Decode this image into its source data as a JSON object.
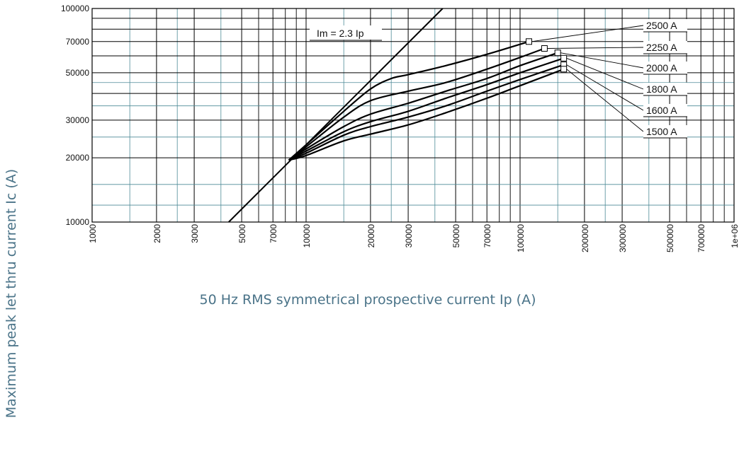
{
  "chart_data": {
    "type": "line",
    "scale": "log-log",
    "xlabel": "50 Hz RMS symmetrical prospective current Ip (A)",
    "ylabel": "Maximum peak let thru current Ic (A)",
    "xlim": [
      1000,
      1000000
    ],
    "ylim": [
      10000,
      100000
    ],
    "x_ticks": [
      {
        "value": 1000,
        "label": "1000"
      },
      {
        "value": 2000,
        "label": "2000"
      },
      {
        "value": 3000,
        "label": "3000"
      },
      {
        "value": 5000,
        "label": "5000"
      },
      {
        "value": 7000,
        "label": "7000"
      },
      {
        "value": 10000,
        "label": "10000"
      },
      {
        "value": 20000,
        "label": "20000"
      },
      {
        "value": 30000,
        "label": "30000"
      },
      {
        "value": 50000,
        "label": "50000"
      },
      {
        "value": 70000,
        "label": "70000"
      },
      {
        "value": 100000,
        "label": "100000"
      },
      {
        "value": 200000,
        "label": "200000"
      },
      {
        "value": 300000,
        "label": "300000"
      },
      {
        "value": 500000,
        "label": "500000"
      },
      {
        "value": 700000,
        "label": "700000"
      },
      {
        "value": 1000000,
        "label": "1e+06"
      }
    ],
    "y_ticks": [
      {
        "value": 10000,
        "label": "10000"
      },
      {
        "value": 20000,
        "label": "20000"
      },
      {
        "value": 30000,
        "label": "30000"
      },
      {
        "value": 50000,
        "label": "50000"
      },
      {
        "value": 70000,
        "label": "70000"
      },
      {
        "value": 100000,
        "label": "100000"
      }
    ],
    "reference_line": {
      "label": "Im = 2.3 Ip",
      "factor": 2.3
    },
    "series": [
      {
        "name": "2500 A",
        "x": [
          8300,
          10000,
          15000,
          20000,
          25000,
          30000,
          45000,
          70000,
          110000
        ],
        "y": [
          19500,
          23000,
          33000,
          42000,
          47000,
          49000,
          54000,
          61000,
          70000
        ]
      },
      {
        "name": "2250 A",
        "x": [
          8300,
          10000,
          15000,
          20000,
          30000,
          45000,
          70000,
          100000,
          130000
        ],
        "y": [
          19500,
          22500,
          31000,
          37000,
          41000,
          45000,
          52000,
          59000,
          65000
        ]
      },
      {
        "name": "2000 A",
        "x": [
          8300,
          10000,
          15000,
          20000,
          30000,
          45000,
          70000,
          100000,
          150000
        ],
        "y": [
          19500,
          22000,
          28000,
          32000,
          36000,
          41000,
          47000,
          54000,
          62000
        ]
      },
      {
        "name": "1800 A",
        "x": [
          8300,
          10000,
          15000,
          20000,
          30000,
          45000,
          70000,
          100000,
          160000
        ],
        "y": [
          19500,
          21500,
          26500,
          29500,
          33000,
          38000,
          44000,
          50000,
          58500
        ]
      },
      {
        "name": "1600 A",
        "x": [
          8300,
          10000,
          15000,
          20000,
          30000,
          45000,
          70000,
          100000,
          160000
        ],
        "y": [
          19500,
          21000,
          25500,
          28000,
          31000,
          35000,
          41000,
          46500,
          54500
        ]
      },
      {
        "name": "1500 A",
        "x": [
          8300,
          10000,
          15000,
          20000,
          30000,
          45000,
          70000,
          100000,
          160000
        ],
        "y": [
          19500,
          20500,
          24000,
          25800,
          28500,
          32500,
          38000,
          43500,
          52000
        ]
      }
    ]
  }
}
